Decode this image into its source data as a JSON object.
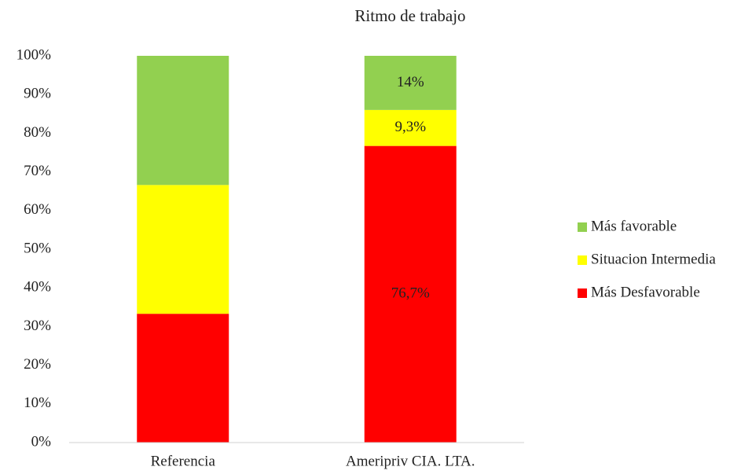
{
  "chart_data": {
    "type": "stacked_bar",
    "title": "Ritmo de trabajo",
    "categories": [
      "Referencia",
      "Ameripriv CIA. LTA."
    ],
    "series": [
      {
        "name": "Más Desfavorable",
        "color": "#ff0000",
        "values": [
          33.3,
          76.7
        ],
        "value_labels": [
          null,
          "76,7%"
        ]
      },
      {
        "name": "Situacion Intermedia",
        "color": "#ffff00",
        "values": [
          33.3,
          9.3
        ],
        "value_labels": [
          null,
          "9,3%"
        ]
      },
      {
        "name": "Más favorable",
        "color": "#92d050",
        "values": [
          33.4,
          14
        ],
        "value_labels": [
          null,
          "14%"
        ]
      }
    ],
    "ylim": [
      0,
      100
    ],
    "yticks": [
      {
        "value": 0,
        "label": "0%"
      },
      {
        "value": 10,
        "label": "10%"
      },
      {
        "value": 20,
        "label": "20%"
      },
      {
        "value": 30,
        "label": "30%"
      },
      {
        "value": 40,
        "label": "40%"
      },
      {
        "value": 50,
        "label": "50%"
      },
      {
        "value": 60,
        "label": "60%"
      },
      {
        "value": 70,
        "label": "70%"
      },
      {
        "value": 80,
        "label": "80%"
      },
      {
        "value": 90,
        "label": "90%"
      },
      {
        "value": 100,
        "label": "100%"
      }
    ],
    "grid": false,
    "legend": "right"
  }
}
